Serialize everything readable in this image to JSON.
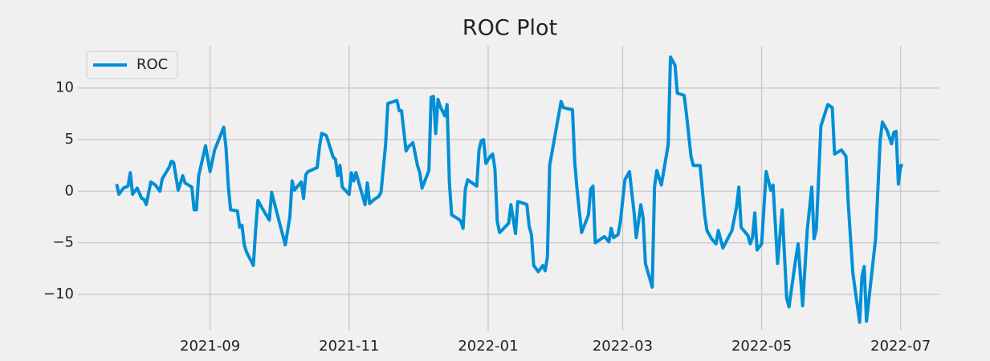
{
  "chart_data": {
    "type": "line",
    "title": "ROC Plot",
    "x": [
      "2021-07-22",
      "2021-07-23",
      "2021-07-25",
      "2021-07-27",
      "2021-07-28",
      "2021-07-29",
      "2021-07-31",
      "2021-08-02",
      "2021-08-03",
      "2021-08-04",
      "2021-08-06",
      "2021-08-08",
      "2021-08-10",
      "2021-08-11",
      "2021-08-14",
      "2021-08-15",
      "2021-08-16",
      "2021-08-18",
      "2021-08-20",
      "2021-08-21",
      "2021-08-24",
      "2021-08-25",
      "2021-08-26",
      "2021-08-27",
      "2021-08-30",
      "2021-09-01",
      "2021-09-03",
      "2021-09-07",
      "2021-09-08",
      "2021-09-09",
      "2021-09-10",
      "2021-09-13",
      "2021-09-14",
      "2021-09-15",
      "2021-09-16",
      "2021-09-17",
      "2021-09-20",
      "2021-09-21",
      "2021-09-22",
      "2021-09-24",
      "2021-09-27",
      "2021-09-28",
      "2021-10-04",
      "2021-10-06",
      "2021-10-07",
      "2021-10-08",
      "2021-10-11",
      "2021-10-12",
      "2021-10-13",
      "2021-10-14",
      "2021-10-18",
      "2021-10-19",
      "2021-10-20",
      "2021-10-22",
      "2021-10-25",
      "2021-10-26",
      "2021-10-27",
      "2021-10-28",
      "2021-10-29",
      "2021-11-01",
      "2021-11-02",
      "2021-11-03",
      "2021-11-04",
      "2021-11-08",
      "2021-11-09",
      "2021-11-10",
      "2021-11-12",
      "2021-11-14",
      "2021-11-15",
      "2021-11-17",
      "2021-11-18",
      "2021-11-22",
      "2021-11-23",
      "2021-11-24",
      "2021-11-26",
      "2021-11-27",
      "2021-11-29",
      "2021-12-01",
      "2021-12-02",
      "2021-12-03",
      "2021-12-06",
      "2021-12-07",
      "2021-12-08",
      "2021-12-09",
      "2021-12-10",
      "2021-12-11",
      "2021-12-13",
      "2021-12-14",
      "2021-12-15",
      "2021-12-16",
      "2021-12-19",
      "2021-12-20",
      "2021-12-21",
      "2021-12-22",
      "2021-12-23",
      "2021-12-25",
      "2021-12-27",
      "2021-12-28",
      "2021-12-29",
      "2021-12-30",
      "2021-12-31",
      "2022-01-02",
      "2022-01-03",
      "2022-01-04",
      "2022-01-05",
      "2022-01-06",
      "2022-01-07",
      "2022-01-10",
      "2022-01-11",
      "2022-01-13",
      "2022-01-14",
      "2022-01-17",
      "2022-01-18",
      "2022-01-19",
      "2022-01-20",
      "2022-01-21",
      "2022-01-23",
      "2022-01-25",
      "2022-01-26",
      "2022-01-27",
      "2022-01-28",
      "2022-02-02",
      "2022-02-03",
      "2022-02-07",
      "2022-02-08",
      "2022-02-09",
      "2022-02-11",
      "2022-02-14",
      "2022-02-15",
      "2022-02-16",
      "2022-02-17",
      "2022-02-19",
      "2022-02-21",
      "2022-02-23",
      "2022-02-24",
      "2022-02-25",
      "2022-02-27",
      "2022-02-28",
      "2022-03-02",
      "2022-03-04",
      "2022-03-06",
      "2022-03-07",
      "2022-03-09",
      "2022-03-10",
      "2022-03-11",
      "2022-03-14",
      "2022-03-15",
      "2022-03-16",
      "2022-03-18",
      "2022-03-21",
      "2022-03-22",
      "2022-03-24",
      "2022-03-25",
      "2022-03-28",
      "2022-03-29",
      "2022-03-31",
      "2022-04-01",
      "2022-04-04",
      "2022-04-06",
      "2022-04-07",
      "2022-04-09",
      "2022-04-11",
      "2022-04-12",
      "2022-04-14",
      "2022-04-18",
      "2022-04-20",
      "2022-04-21",
      "2022-04-22",
      "2022-04-25",
      "2022-04-26",
      "2022-04-27",
      "2022-04-28",
      "2022-04-29",
      "2022-05-01",
      "2022-05-03",
      "2022-05-05",
      "2022-05-06",
      "2022-05-08",
      "2022-05-10",
      "2022-05-12",
      "2022-05-13",
      "2022-05-16",
      "2022-05-17",
      "2022-05-19",
      "2022-05-21",
      "2022-05-23",
      "2022-05-24",
      "2022-05-25",
      "2022-05-27",
      "2022-05-30",
      "2022-06-01",
      "2022-06-02",
      "2022-06-05",
      "2022-06-07",
      "2022-06-08",
      "2022-06-10",
      "2022-06-13",
      "2022-06-14",
      "2022-06-15",
      "2022-06-16",
      "2022-06-20",
      "2022-06-22",
      "2022-06-23",
      "2022-06-25",
      "2022-06-27",
      "2022-06-28",
      "2022-06-29",
      "2022-06-30",
      "2022-07-01",
      "2022-07-02"
    ],
    "series": [
      {
        "name": "ROC",
        "color": "#008fd5",
        "values": [
          0.7,
          -0.3,
          0.3,
          0.5,
          1.8,
          -0.3,
          0.3,
          -0.7,
          -0.8,
          -1.3,
          0.9,
          0.6,
          0,
          1.2,
          2.3,
          2.9,
          2.8,
          0.1,
          1.5,
          0.8,
          0.4,
          -1.8,
          -1.8,
          1.5,
          4.4,
          1.9,
          4.0,
          6.2,
          4.2,
          0.5,
          -1.8,
          -1.9,
          -3.5,
          -3.3,
          -5.2,
          -5.9,
          -7.2,
          -3.7,
          -0.9,
          -1.7,
          -2.8,
          -0.1,
          -5.2,
          -2.5,
          1.0,
          0.1,
          0.9,
          -0.7,
          1.6,
          1.9,
          2.3,
          4.3,
          5.6,
          5.4,
          3.3,
          3.1,
          1.5,
          2.5,
          0.4,
          -0.3,
          1.8,
          1.0,
          1.8,
          -1.3,
          0.8,
          -1.2,
          -0.8,
          -0.5,
          -0.1,
          4.5,
          8.5,
          8.8,
          7.8,
          7.8,
          3.9,
          4.3,
          4.7,
          2.5,
          1.8,
          0.3,
          2.0,
          9.1,
          9.2,
          5.6,
          8.9,
          8.2,
          7.3,
          8.4,
          0.8,
          -2.3,
          -2.7,
          -2.9,
          -3.6,
          0.2,
          1.1,
          0.8,
          0.5,
          4.0,
          4.9,
          5.0,
          2.7,
          3.4,
          3.6,
          2.1,
          -2.9,
          -4.0,
          -3.8,
          -3.1,
          -1.3,
          -4.1,
          -1.0,
          -1.2,
          -1.3,
          -3.4,
          -4.2,
          -7.2,
          -7.8,
          -7.2,
          -7.7,
          -6.4,
          2.5,
          8.7,
          8.1,
          7.9,
          2.8,
          0.2,
          -4.0,
          -2.3,
          0.2,
          0.5,
          -5.0,
          -4.7,
          -4.4,
          -4.9,
          -3.6,
          -4.5,
          -4.2,
          -3.0,
          1.1,
          1.9,
          -2.0,
          -4.5,
          -1.3,
          -2.6,
          -7.0,
          -9.3,
          0.4,
          2.0,
          0.6,
          4.5,
          13.0,
          12.2,
          9.5,
          9.3,
          7.5,
          3.4,
          2.5,
          2.5,
          -2.3,
          -3.8,
          -4.6,
          -5.1,
          -3.8,
          -5.5,
          -3.8,
          -1.5,
          0.4,
          -3.5,
          -4.3,
          -5.1,
          -4.5,
          -2.1,
          -5.7,
          -5.1,
          1.9,
          0.1,
          0.6,
          -7.0,
          -1.8,
          -10.4,
          -11.2,
          -6.5,
          -5.1,
          -11.1,
          -3.8,
          0.4,
          -4.6,
          -3.7,
          6.3,
          8.4,
          8.1,
          3.6,
          4.0,
          3.4,
          -1.2,
          -7.9,
          -12.7,
          -8.3,
          -7.3,
          -12.6,
          -4.6,
          4.9,
          6.7,
          5.9,
          4.6,
          5.7,
          5.8,
          0.7,
          2.5,
          2.5
        ]
      }
    ],
    "xlim": [
      "2021-07-05",
      "2022-07-18"
    ],
    "xticks": [
      {
        "value": "2021-09-01",
        "label": "2021-09"
      },
      {
        "value": "2021-11-01",
        "label": "2021-11"
      },
      {
        "value": "2022-01-01",
        "label": "2022-01"
      },
      {
        "value": "2022-03-01",
        "label": "2022-03"
      },
      {
        "value": "2022-05-01",
        "label": "2022-05"
      },
      {
        "value": "2022-07-01",
        "label": "2022-07"
      }
    ],
    "ylim": [
      -13.5,
      14.1
    ],
    "yticks": [
      {
        "value": -10,
        "label": "−10"
      },
      {
        "value": -5,
        "label": "−5"
      },
      0,
      5,
      10
    ],
    "grid": true,
    "legend": "upper left"
  }
}
